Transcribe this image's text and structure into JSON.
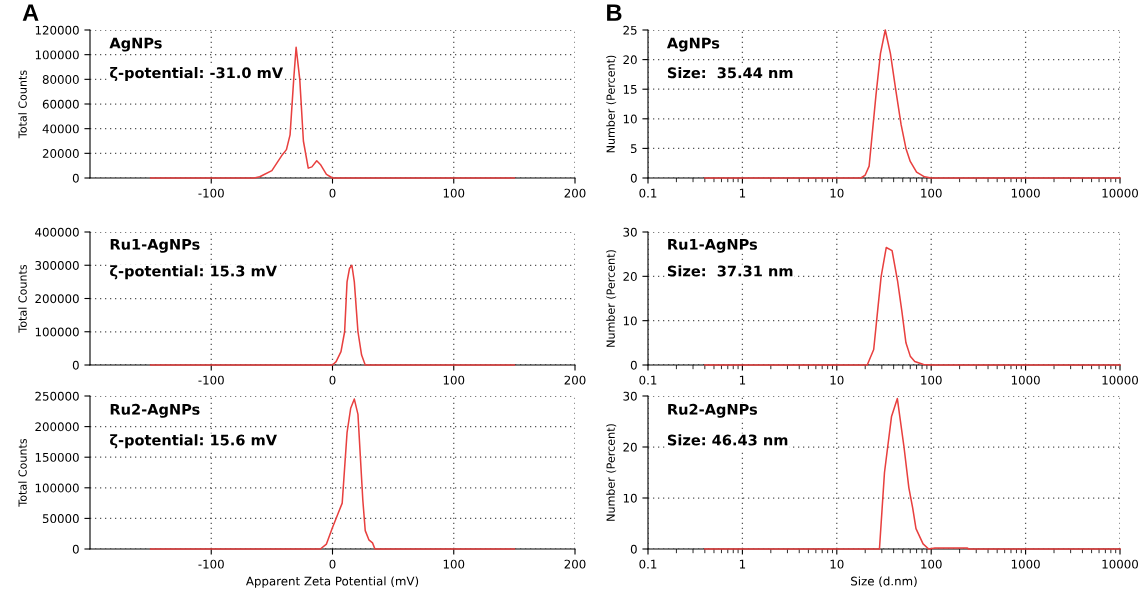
{
  "chart_data": [
    {
      "type": "line",
      "title": "A",
      "ylabel": "Total Counts",
      "annotations": [
        "AgNPs",
        "ζ-potential: -31.0 mV"
      ],
      "grid": true,
      "xlim": [
        -200,
        200
      ],
      "xticks": [
        -100,
        0,
        100,
        200
      ],
      "ylim": [
        0,
        120000
      ],
      "yticks": [
        0,
        20000,
        40000,
        60000,
        80000,
        100000,
        120000
      ],
      "series": [
        {
          "color": "#e8403f",
          "x": [
            -150,
            -65,
            -60,
            -50,
            -42,
            -38,
            -35,
            -32,
            -30,
            -27,
            -24,
            -20,
            -17,
            -13,
            -10,
            -5,
            0,
            150
          ],
          "values": [
            0,
            0,
            1000,
            6000,
            18000,
            23000,
            35000,
            80000,
            106000,
            80000,
            30000,
            8000,
            9000,
            14000,
            11000,
            3000,
            0,
            0
          ]
        }
      ]
    },
    {
      "type": "line",
      "ylabel": "Total Counts",
      "annotations": [
        "Ru1-AgNPs",
        "ζ-potential: 15.3 mV"
      ],
      "grid": true,
      "xlim": [
        -200,
        200
      ],
      "xticks": [
        -100,
        0,
        100,
        200
      ],
      "ylim": [
        0,
        400000
      ],
      "yticks": [
        0,
        100000,
        200000,
        300000,
        400000
      ],
      "series": [
        {
          "color": "#e8403f",
          "x": [
            -150,
            0,
            3,
            7,
            10,
            12,
            14,
            16,
            18,
            21,
            24,
            27,
            150
          ],
          "values": [
            0,
            0,
            10000,
            40000,
            100000,
            250000,
            290000,
            300000,
            250000,
            100000,
            30000,
            0,
            0
          ]
        }
      ]
    },
    {
      "type": "line",
      "xlabel": "Apparent Zeta Potential (mV)",
      "ylabel": "Total Counts",
      "annotations": [
        "Ru2-AgNPs",
        "ζ-potential: 15.6 mV"
      ],
      "grid": true,
      "xlim": [
        -200,
        200
      ],
      "xticks": [
        -100,
        0,
        100,
        200
      ],
      "ylim": [
        0,
        250000
      ],
      "yticks": [
        0,
        50000,
        100000,
        150000,
        200000,
        250000
      ],
      "series": [
        {
          "color": "#e8403f",
          "x": [
            -150,
            -10,
            -5,
            0,
            5,
            8,
            12,
            15,
            18,
            21,
            25,
            27,
            30,
            33,
            35,
            150
          ],
          "values": [
            0,
            0,
            8000,
            35000,
            60000,
            75000,
            190000,
            230000,
            245000,
            220000,
            80000,
            30000,
            15000,
            10000,
            0,
            0
          ]
        }
      ]
    },
    {
      "type": "line",
      "title": "B",
      "ylabel": "Number (Percent)",
      "annotations": [
        "AgNPs",
        "Size:  35.44 nm"
      ],
      "grid": true,
      "log": "x",
      "xlim": [
        0.1,
        10000
      ],
      "xticks": [
        0.1,
        1,
        10,
        100,
        1000,
        10000
      ],
      "ylim": [
        0,
        25
      ],
      "yticks": [
        0,
        5,
        10,
        15,
        20,
        25
      ],
      "series": [
        {
          "color": "#e8403f",
          "x": [
            0.4,
            18,
            20,
            22,
            26,
            29,
            32.6,
            37,
            42,
            48,
            54,
            60,
            70,
            85,
            100,
            10000
          ],
          "values": [
            0,
            0,
            0.5,
            2,
            14,
            21,
            25,
            21,
            15,
            9,
            5,
            2.8,
            1,
            0.2,
            0,
            0
          ]
        }
      ]
    },
    {
      "type": "line",
      "ylabel": "Number (Percent)",
      "annotations": [
        "Ru1-AgNPs",
        "Size:  37.31 nm"
      ],
      "grid": true,
      "log": "x",
      "xlim": [
        0.1,
        10000
      ],
      "xticks": [
        0.1,
        1,
        10,
        100,
        1000,
        10000
      ],
      "ylim": [
        0,
        30
      ],
      "yticks": [
        0,
        10,
        20,
        30
      ],
      "series": [
        {
          "color": "#e8403f",
          "x": [
            0.4,
            21,
            24.6,
            27,
            29.5,
            33.4,
            38.5,
            44,
            49,
            54,
            60,
            67,
            83,
            100,
            10000
          ],
          "values": [
            0,
            0,
            3.5,
            12,
            20,
            26.5,
            25.8,
            19,
            12,
            5,
            2,
            0.8,
            0.1,
            0,
            0
          ]
        }
      ]
    },
    {
      "type": "line",
      "xlabel": "Size (d.nm)",
      "ylabel": "Number (Percent)",
      "annotations": [
        "Ru2-AgNPs",
        "Size: 46.43 nm"
      ],
      "grid": true,
      "log": "x",
      "xlim": [
        0.1,
        10000
      ],
      "xticks": [
        0.1,
        1,
        10,
        100,
        1000,
        10000
      ],
      "ylim": [
        0,
        30
      ],
      "yticks": [
        0,
        10,
        20,
        30
      ],
      "series": [
        {
          "color": "#e8403f",
          "x": [
            0.4,
            28.3,
            32,
            38,
            43.8,
            51.5,
            58,
            63.7,
            69,
            82,
            94,
            110,
            240,
            250,
            10000
          ],
          "values": [
            0,
            0,
            15,
            26,
            29.5,
            20,
            12,
            8,
            4,
            1,
            0,
            0.2,
            0.2,
            0,
            0
          ]
        }
      ]
    }
  ]
}
